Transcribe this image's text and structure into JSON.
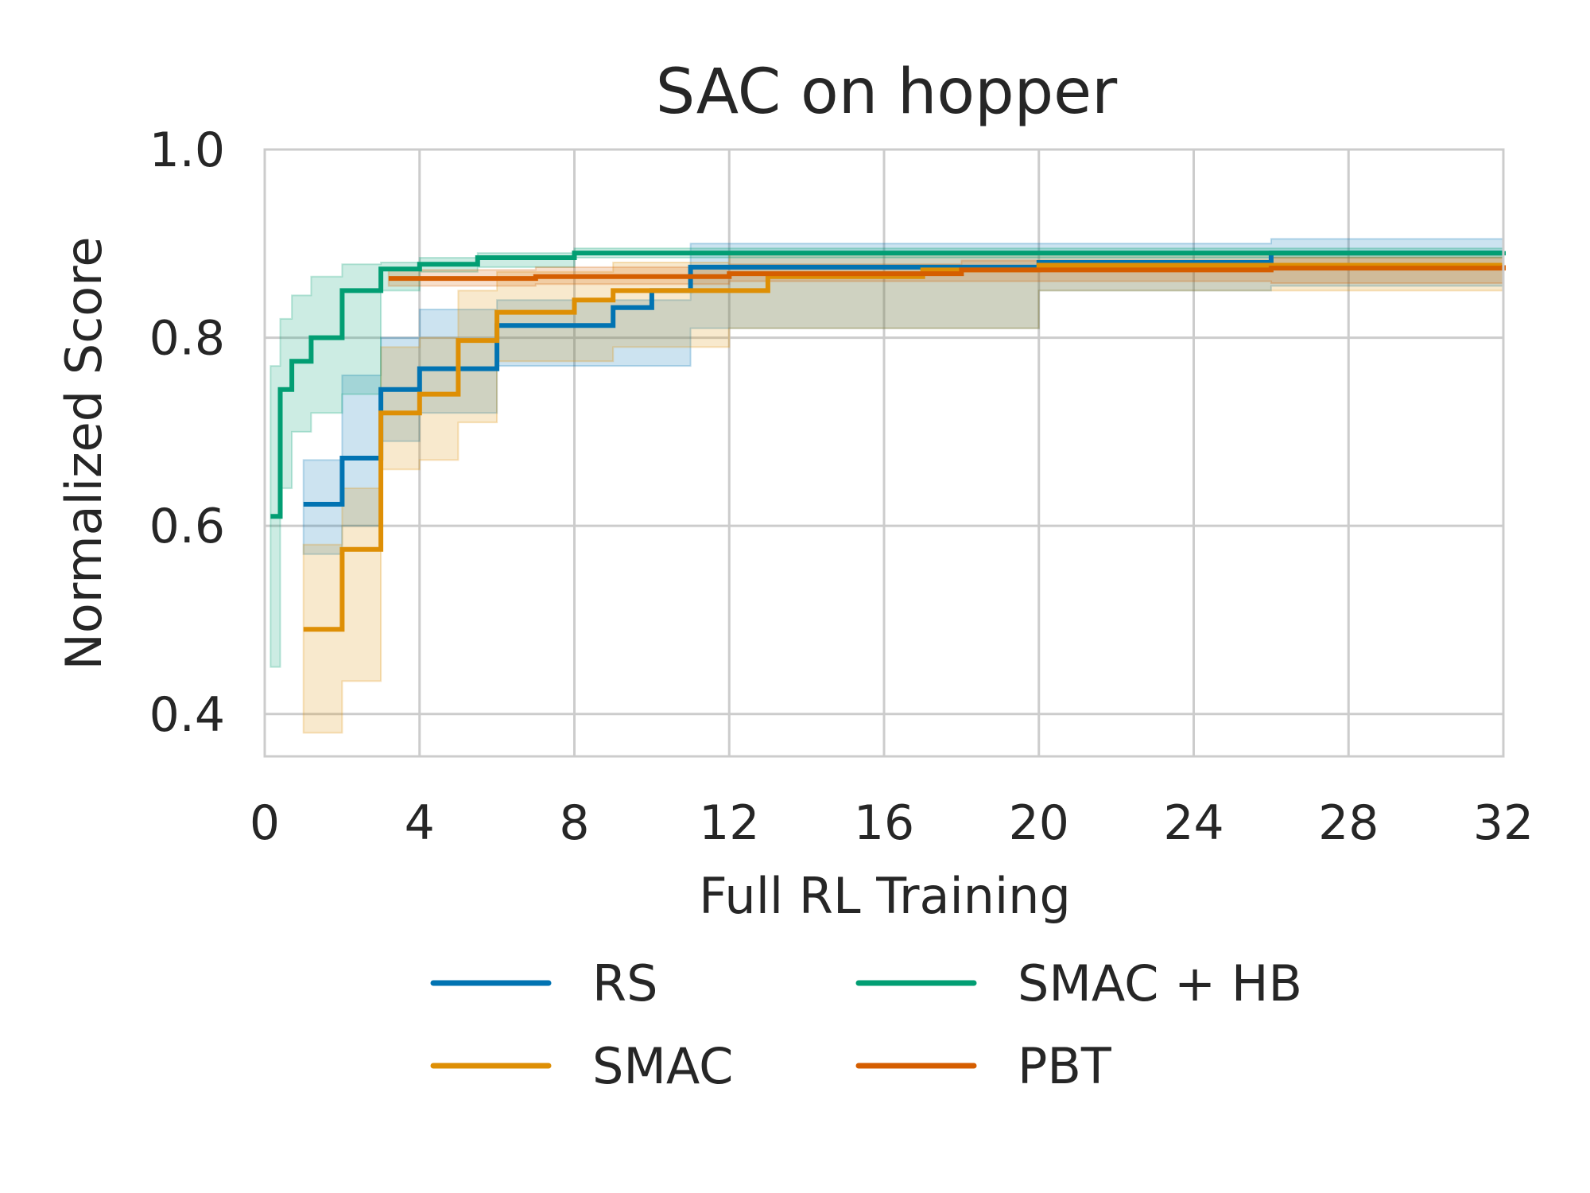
{
  "chart_data": {
    "type": "line",
    "title": "SAC on hopper",
    "xlabel": "Full RL Training",
    "ylabel": "Normalized Score",
    "xlim": [
      0,
      32
    ],
    "ylim": [
      0.355,
      1.0
    ],
    "xticks": [
      0,
      4,
      8,
      12,
      16,
      20,
      24,
      28,
      32
    ],
    "yticks": [
      0.4,
      0.6,
      0.8,
      1.0
    ],
    "xtick_labels": [
      "0",
      "4",
      "8",
      "12",
      "16",
      "20",
      "24",
      "28",
      "32"
    ],
    "ytick_labels": [
      "0.4",
      "0.6",
      "0.8",
      "1.0"
    ],
    "grid": true,
    "legend_position": "below",
    "legend_columns": 2,
    "series": [
      {
        "name": "RS",
        "color": "#0173b2",
        "x": [
          1.0,
          2.0,
          3.0,
          4.0,
          6.0,
          9.0,
          10.0,
          11.0,
          20.0,
          26.0,
          32.0
        ],
        "y": [
          0.623,
          0.672,
          0.745,
          0.767,
          0.813,
          0.832,
          0.85,
          0.875,
          0.88,
          0.89,
          0.89
        ],
        "band_x": [
          1.0,
          2.0,
          3.0,
          4.0,
          6.0,
          11.0,
          20.0,
          26.0,
          32.0
        ],
        "band_lower": [
          0.57,
          0.6,
          0.69,
          0.72,
          0.77,
          0.81,
          0.85,
          0.855,
          0.86
        ],
        "band_upper": [
          0.67,
          0.76,
          0.8,
          0.83,
          0.84,
          0.9,
          0.9,
          0.905,
          0.905
        ]
      },
      {
        "name": "SMAC",
        "color": "#de8f05",
        "x": [
          1.0,
          2.0,
          3.0,
          4.0,
          5.0,
          6.0,
          8.0,
          9.0,
          13.0,
          17.0,
          20.0,
          32.0
        ],
        "y": [
          0.49,
          0.575,
          0.72,
          0.74,
          0.797,
          0.827,
          0.84,
          0.85,
          0.865,
          0.872,
          0.877,
          0.877
        ],
        "band_x": [
          1.0,
          2.0,
          3.0,
          4.0,
          5.0,
          6.0,
          9.0,
          12.0,
          20.0,
          32.0
        ],
        "band_lower": [
          0.38,
          0.435,
          0.66,
          0.67,
          0.71,
          0.775,
          0.79,
          0.81,
          0.85,
          0.848
        ],
        "band_upper": [
          0.58,
          0.64,
          0.79,
          0.8,
          0.85,
          0.87,
          0.88,
          0.89,
          0.89,
          0.895
        ]
      },
      {
        "name": "SMAC + HB",
        "color": "#029e73",
        "x": [
          0.15,
          0.4,
          0.7,
          1.2,
          2.0,
          3.0,
          4.0,
          5.5,
          8.0,
          32.0
        ],
        "y": [
          0.61,
          0.745,
          0.775,
          0.8,
          0.85,
          0.873,
          0.878,
          0.885,
          0.89,
          0.892
        ],
        "band_x": [
          0.15,
          0.4,
          0.7,
          1.2,
          2.0,
          3.0,
          4.0,
          5.5,
          8.0,
          32.0
        ],
        "band_lower": [
          0.45,
          0.64,
          0.7,
          0.72,
          0.74,
          0.85,
          0.87,
          0.875,
          0.885,
          0.885
        ],
        "band_upper": [
          0.77,
          0.82,
          0.845,
          0.865,
          0.878,
          0.88,
          0.885,
          0.89,
          0.895,
          0.898
        ]
      },
      {
        "name": "PBT",
        "color": "#d55e00",
        "x": [
          3.2,
          7.0,
          12.0,
          18.0,
          26.0,
          32.0
        ],
        "y": [
          0.863,
          0.865,
          0.868,
          0.872,
          0.874,
          0.877
        ],
        "band_x": [
          3.2,
          7.0,
          12.0,
          18.0,
          26.0,
          32.0
        ],
        "band_lower": [
          0.855,
          0.857,
          0.86,
          0.86,
          0.858,
          0.86
        ],
        "band_upper": [
          0.872,
          0.875,
          0.878,
          0.882,
          0.885,
          0.888
        ]
      }
    ]
  }
}
